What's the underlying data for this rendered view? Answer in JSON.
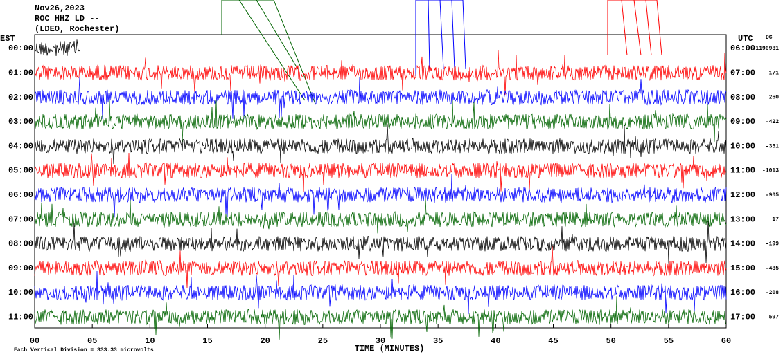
{
  "chart_data": {
    "type": "seismogram",
    "title_lines": [
      "Nov26,2023",
      "ROC HHZ LD --",
      "(LDEO, Rochester)"
    ],
    "left_axis_label": "EST",
    "right_axis_label": "UTC",
    "dc_label": "DC",
    "xlabel": "TIME (MINUTES)",
    "footnote": "Each Vertical Division =  333.33 microvolts",
    "xlim": [
      0,
      60
    ],
    "xticks": [
      {
        "value": 0,
        "label": "00"
      },
      {
        "value": 5,
        "label": "05"
      },
      10,
      15,
      20,
      25,
      30,
      35,
      40,
      45,
      50,
      55,
      60
    ],
    "rows": [
      {
        "est": "00:00",
        "utc": "06:00",
        "dc": -1190981,
        "color": "#000000"
      },
      {
        "est": "01:00",
        "utc": "07:00",
        "dc": -171,
        "color": "#ff0000"
      },
      {
        "est": "02:00",
        "utc": "08:00",
        "dc": 260,
        "color": "#0000ff"
      },
      {
        "est": "03:00",
        "utc": "09:00",
        "dc": -422,
        "color": "#006400"
      },
      {
        "est": "04:00",
        "utc": "10:00",
        "dc": -351,
        "color": "#000000"
      },
      {
        "est": "05:00",
        "utc": "11:00",
        "dc": -1013,
        "color": "#ff0000"
      },
      {
        "est": "06:00",
        "utc": "12:00",
        "dc": -905,
        "color": "#0000ff"
      },
      {
        "est": "07:00",
        "utc": "13:00",
        "dc": 17,
        "color": "#006400"
      },
      {
        "est": "08:00",
        "utc": "14:00",
        "dc": -199,
        "color": "#000000"
      },
      {
        "est": "09:00",
        "utc": "15:00",
        "dc": -485,
        "color": "#ff0000"
      },
      {
        "est": "10:00",
        "utc": "16:00",
        "dc": -208,
        "color": "#0000ff"
      },
      {
        "est": "11:00",
        "utc": "17:00",
        "dc": 597,
        "color": "#006400"
      }
    ]
  }
}
